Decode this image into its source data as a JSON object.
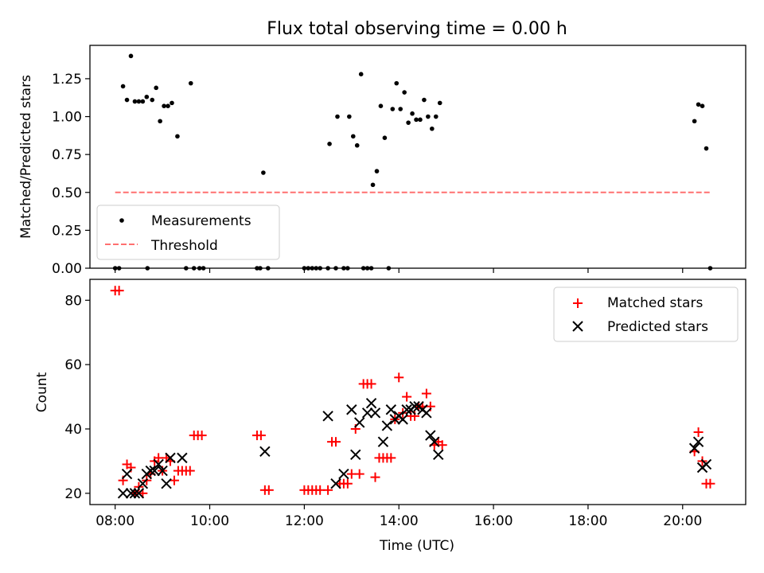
{
  "chart_data": [
    {
      "type": "scatter",
      "title": "Flux total observing time = 0.00 h",
      "xlabel": "",
      "ylabel": "Matched/Predicted stars",
      "xlim": [
        "07:28",
        "21:20"
      ],
      "ylim": [
        0,
        1.47
      ],
      "yticks": [
        "0.00",
        "0.25",
        "0.50",
        "0.75",
        "1.00",
        "1.25"
      ],
      "legend": {
        "placement": "lower-left",
        "entries": [
          "Measurements",
          "Threshold"
        ]
      },
      "series": [
        {
          "name": "Measurements",
          "color": "#000000",
          "marker": "dot",
          "points": [
            [
              "08:00",
              0.0
            ],
            [
              "08:05",
              0.0
            ],
            [
              "08:10",
              1.2
            ],
            [
              "08:15",
              1.11
            ],
            [
              "08:20",
              1.4
            ],
            [
              "08:25",
              1.1
            ],
            [
              "08:30",
              1.1
            ],
            [
              "08:35",
              1.1
            ],
            [
              "08:40",
              1.13
            ],
            [
              "08:41",
              0.0
            ],
            [
              "08:47",
              1.11
            ],
            [
              "08:52",
              1.19
            ],
            [
              "08:57",
              0.97
            ],
            [
              "09:02",
              1.07
            ],
            [
              "09:07",
              1.07
            ],
            [
              "09:12",
              1.09
            ],
            [
              "09:19",
              0.87
            ],
            [
              "09:30",
              0.0
            ],
            [
              "09:40",
              0.0
            ],
            [
              "09:36",
              1.22
            ],
            [
              "09:47",
              0.0
            ],
            [
              "09:52",
              0.0
            ],
            [
              "11:00",
              0.0
            ],
            [
              "11:04",
              0.0
            ],
            [
              "11:08",
              0.63
            ],
            [
              "11:14",
              0.0
            ],
            [
              "12:00",
              0.0
            ],
            [
              "12:05",
              0.0
            ],
            [
              "12:10",
              0.0
            ],
            [
              "12:15",
              0.0
            ],
            [
              "12:20",
              0.0
            ],
            [
              "12:30",
              0.0
            ],
            [
              "12:32",
              0.82
            ],
            [
              "12:40",
              0.0
            ],
            [
              "12:42",
              1.0
            ],
            [
              "12:50",
              0.0
            ],
            [
              "12:55",
              0.0
            ],
            [
              "12:57",
              1.0
            ],
            [
              "13:02",
              0.87
            ],
            [
              "13:07",
              0.81
            ],
            [
              "13:12",
              1.28
            ],
            [
              "13:15",
              0.0
            ],
            [
              "13:20",
              0.0
            ],
            [
              "13:25",
              0.0
            ],
            [
              "13:27",
              0.55
            ],
            [
              "13:32",
              0.64
            ],
            [
              "13:37",
              1.07
            ],
            [
              "13:42",
              0.86
            ],
            [
              "13:47",
              0.0
            ],
            [
              "13:52",
              1.05
            ],
            [
              "13:57",
              1.22
            ],
            [
              "14:02",
              1.05
            ],
            [
              "14:07",
              1.16
            ],
            [
              "14:12",
              0.96
            ],
            [
              "14:17",
              1.02
            ],
            [
              "14:22",
              0.98
            ],
            [
              "14:27",
              0.98
            ],
            [
              "14:32",
              1.11
            ],
            [
              "14:37",
              1.0
            ],
            [
              "14:42",
              0.92
            ],
            [
              "14:47",
              1.0
            ],
            [
              "14:52",
              1.09
            ],
            [
              "20:15",
              0.97
            ],
            [
              "20:20",
              1.08
            ],
            [
              "20:25",
              1.07
            ],
            [
              "20:30",
              0.79
            ],
            [
              "20:35",
              0.0
            ]
          ]
        },
        {
          "name": "Threshold",
          "color": "#ff7070",
          "style": "dashed",
          "points": [
            [
              "08:00",
              0.5
            ],
            [
              "20:35",
              0.5
            ]
          ]
        }
      ]
    },
    {
      "type": "scatter",
      "title": "",
      "xlabel": "Time (UTC)",
      "ylabel": "Count",
      "xlim": [
        "07:28",
        "21:20"
      ],
      "ylim": [
        16.5,
        86.5
      ],
      "yticks": [
        "20",
        "40",
        "60",
        "80"
      ],
      "xticks": [
        "08:00",
        "10:00",
        "12:00",
        "14:00",
        "16:00",
        "18:00",
        "20:00"
      ],
      "legend": {
        "placement": "upper-right",
        "entries": [
          "Matched stars",
          "Predicted stars"
        ]
      },
      "series": [
        {
          "name": "Matched stars",
          "color": "#ff0000",
          "marker": "plus",
          "points": [
            [
              "08:00",
              83
            ],
            [
              "08:05",
              83
            ],
            [
              "08:10",
              24
            ],
            [
              "08:15",
              29
            ],
            [
              "08:20",
              28
            ],
            [
              "08:25",
              20
            ],
            [
              "08:30",
              22
            ],
            [
              "08:35",
              20
            ],
            [
              "08:40",
              24
            ],
            [
              "08:45",
              26
            ],
            [
              "08:50",
              30
            ],
            [
              "08:55",
              31
            ],
            [
              "09:00",
              27
            ],
            [
              "09:05",
              31
            ],
            [
              "09:10",
              30
            ],
            [
              "09:15",
              24
            ],
            [
              "09:20",
              27
            ],
            [
              "09:25",
              27
            ],
            [
              "09:30",
              27
            ],
            [
              "09:35",
              27
            ],
            [
              "09:40",
              38
            ],
            [
              "09:45",
              38
            ],
            [
              "09:50",
              38
            ],
            [
              "11:00",
              38
            ],
            [
              "11:05",
              38
            ],
            [
              "11:10",
              21
            ],
            [
              "11:15",
              21
            ],
            [
              "12:00",
              21
            ],
            [
              "12:05",
              21
            ],
            [
              "12:10",
              21
            ],
            [
              "12:15",
              21
            ],
            [
              "12:20",
              21
            ],
            [
              "12:30",
              21
            ],
            [
              "12:35",
              36
            ],
            [
              "12:40",
              36
            ],
            [
              "12:45",
              23
            ],
            [
              "12:50",
              23
            ],
            [
              "12:55",
              23
            ],
            [
              "13:00",
              26
            ],
            [
              "13:05",
              40
            ],
            [
              "13:10",
              26
            ],
            [
              "13:15",
              54
            ],
            [
              "13:20",
              54
            ],
            [
              "13:25",
              54
            ],
            [
              "13:30",
              25
            ],
            [
              "13:35",
              31
            ],
            [
              "13:40",
              31
            ],
            [
              "13:45",
              31
            ],
            [
              "13:50",
              31
            ],
            [
              "13:55",
              43
            ],
            [
              "14:00",
              56
            ],
            [
              "14:05",
              45
            ],
            [
              "14:10",
              50
            ],
            [
              "14:15",
              44
            ],
            [
              "14:20",
              44
            ],
            [
              "14:25",
              47
            ],
            [
              "14:30",
              47
            ],
            [
              "14:35",
              51
            ],
            [
              "14:40",
              47
            ],
            [
              "14:45",
              35
            ],
            [
              "14:50",
              36
            ],
            [
              "14:55",
              35
            ],
            [
              "20:15",
              33
            ],
            [
              "20:20",
              39
            ],
            [
              "20:25",
              30
            ],
            [
              "20:30",
              23
            ],
            [
              "20:35",
              23
            ]
          ]
        },
        {
          "name": "Predicted stars",
          "color": "#000000",
          "marker": "x",
          "points": [
            [
              "08:10",
              20
            ],
            [
              "08:15",
              26
            ],
            [
              "08:20",
              20
            ],
            [
              "08:25",
              20
            ],
            [
              "08:30",
              20
            ],
            [
              "08:35",
              23
            ],
            [
              "08:40",
              26
            ],
            [
              "08:45",
              27
            ],
            [
              "08:50",
              27
            ],
            [
              "08:55",
              29
            ],
            [
              "09:00",
              27
            ],
            [
              "09:05",
              23
            ],
            [
              "09:10",
              31
            ],
            [
              "09:25",
              31
            ],
            [
              "11:10",
              33
            ],
            [
              "12:30",
              44
            ],
            [
              "12:40",
              23
            ],
            [
              "12:50",
              26
            ],
            [
              "13:00",
              46
            ],
            [
              "13:05",
              32
            ],
            [
              "13:10",
              42
            ],
            [
              "13:20",
              45
            ],
            [
              "13:25",
              48
            ],
            [
              "13:30",
              45
            ],
            [
              "13:40",
              36
            ],
            [
              "13:45",
              41
            ],
            [
              "13:50",
              46
            ],
            [
              "13:55",
              43
            ],
            [
              "14:00",
              44
            ],
            [
              "14:05",
              43
            ],
            [
              "14:10",
              46
            ],
            [
              "14:15",
              46
            ],
            [
              "14:20",
              47
            ],
            [
              "14:25",
              47
            ],
            [
              "14:30",
              46
            ],
            [
              "14:35",
              45
            ],
            [
              "14:40",
              38
            ],
            [
              "14:45",
              36
            ],
            [
              "14:50",
              32
            ],
            [
              "20:15",
              34
            ],
            [
              "20:20",
              36
            ],
            [
              "20:25",
              28
            ],
            [
              "20:30",
              29
            ]
          ]
        }
      ]
    }
  ]
}
